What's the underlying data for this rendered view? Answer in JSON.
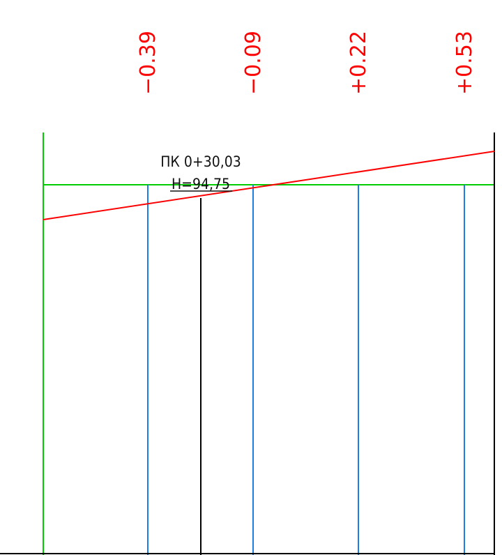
{
  "colors": {
    "background": "#ffffff",
    "frame": "#000000",
    "grid_green": "#00cc00",
    "ordinate_blue": "#1a7fe0",
    "design_line_red": "#ff0000",
    "label_red": "#ff0000",
    "text_dark": "#111111"
  },
  "elevation_differences": [
    {
      "value": "−0.39"
    },
    {
      "value": "−0.09"
    },
    {
      "value": "+0.22"
    },
    {
      "value": "+0.53"
    }
  ],
  "station_point": {
    "picket": "ПК  0+30,03",
    "elevation": "H=94,75"
  }
}
